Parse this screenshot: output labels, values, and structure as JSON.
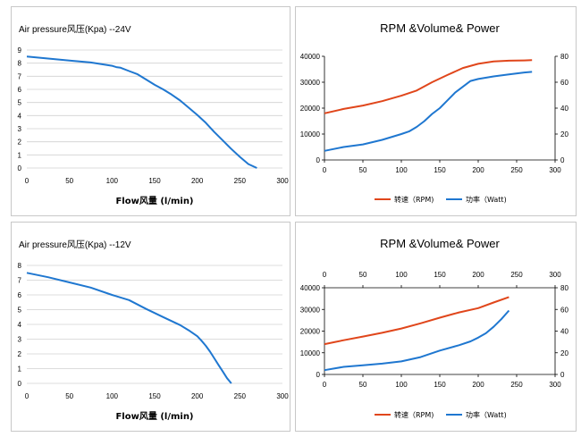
{
  "colors": {
    "blue": "#1f77d0",
    "orange": "#e0461b",
    "grid": "#d0d0d0",
    "border": "#c8c8c8"
  },
  "chart_data": [
    {
      "type": "line",
      "title": "Air pressure风压(Kpa)  --24V",
      "xlabel": "Flow风量  (l/min)",
      "ylabel": "",
      "xlim": [
        0,
        300
      ],
      "ylim": [
        0,
        9
      ],
      "xticks": [
        0,
        50,
        100,
        150,
        200,
        250,
        300
      ],
      "yticks": [
        0,
        1,
        2,
        3,
        4,
        5,
        6,
        7,
        8,
        9
      ],
      "grid": true,
      "series": [
        {
          "x": [
            0,
            25,
            50,
            75,
            100,
            105,
            110,
            120,
            130,
            140,
            150,
            160,
            170,
            180,
            190,
            200,
            210,
            220,
            230,
            240,
            250,
            260,
            270
          ],
          "y": [
            8.5,
            8.35,
            8.2,
            8.05,
            7.8,
            7.7,
            7.65,
            7.4,
            7.15,
            6.75,
            6.35,
            6.0,
            5.6,
            5.15,
            4.6,
            4.05,
            3.45,
            2.75,
            2.1,
            1.45,
            0.85,
            0.3,
            0.0
          ]
        }
      ]
    },
    {
      "type": "line",
      "title": "RPM &Volume& Power",
      "xlim": [
        0,
        300
      ],
      "ylim": [
        0,
        40000
      ],
      "y2lim": [
        0,
        80
      ],
      "xticks": [
        0,
        50,
        100,
        150,
        200,
        250,
        300
      ],
      "yticks": [
        0,
        10000,
        20000,
        30000,
        40000
      ],
      "y2ticks": [
        0,
        20,
        40,
        60,
        80
      ],
      "grid": false,
      "legend_position": "bottom",
      "series": [
        {
          "name": "转速（RPM)",
          "axis": "left",
          "x": [
            0,
            25,
            50,
            75,
            100,
            120,
            140,
            160,
            180,
            200,
            220,
            240,
            260,
            270
          ],
          "y": [
            18000,
            19700,
            21000,
            22700,
            24800,
            26800,
            30000,
            32800,
            35500,
            37100,
            38000,
            38300,
            38400,
            38500
          ]
        },
        {
          "name": "功率（Watt)",
          "axis": "right",
          "x": [
            0,
            25,
            50,
            75,
            100,
            110,
            120,
            130,
            140,
            150,
            160,
            170,
            180,
            190,
            200,
            220,
            240,
            260,
            270
          ],
          "y": [
            7,
            10,
            12,
            15.5,
            20,
            22,
            25.5,
            30,
            35.5,
            40,
            46,
            52,
            56.5,
            61,
            62.5,
            64.5,
            66,
            67.5,
            68
          ]
        }
      ]
    },
    {
      "type": "line",
      "title": "Air pressure风压(Kpa)  --12V",
      "xlabel": "Flow风量  (l/min)",
      "ylabel": "",
      "xlim": [
        0,
        300
      ],
      "ylim": [
        0,
        8
      ],
      "xticks": [
        0,
        50,
        100,
        150,
        200,
        250,
        300
      ],
      "yticks": [
        0,
        1,
        2,
        3,
        4,
        5,
        6,
        7,
        8
      ],
      "grid": true,
      "series": [
        {
          "x": [
            0,
            25,
            50,
            75,
            100,
            120,
            140,
            160,
            180,
            190,
            200,
            205,
            210,
            215,
            220,
            225,
            230,
            235,
            240
          ],
          "y": [
            7.5,
            7.2,
            6.85,
            6.5,
            6.0,
            5.65,
            5.05,
            4.5,
            3.95,
            3.6,
            3.2,
            2.9,
            2.55,
            2.15,
            1.7,
            1.25,
            0.8,
            0.35,
            0.0
          ]
        }
      ]
    },
    {
      "type": "line",
      "title": "RPM &Volume& Power",
      "xlim": [
        0,
        300
      ],
      "ylim": [
        0,
        40000
      ],
      "y2lim": [
        0,
        80
      ],
      "xticks": [
        0,
        50,
        100,
        150,
        200,
        250,
        300
      ],
      "yticks": [
        0,
        10000,
        20000,
        30000,
        40000
      ],
      "y2ticks": [
        0,
        20,
        40,
        60,
        80
      ],
      "top_xaxis": true,
      "grid": false,
      "legend_position": "bottom",
      "series": [
        {
          "name": "转速（RPM)",
          "axis": "left",
          "x": [
            0,
            25,
            50,
            75,
            100,
            125,
            150,
            175,
            200,
            220,
            240
          ],
          "y": [
            14000,
            15800,
            17500,
            19200,
            21200,
            23600,
            26200,
            28600,
            30600,
            33200,
            35700
          ]
        },
        {
          "name": "功率（Watt)",
          "axis": "right",
          "x": [
            0,
            25,
            50,
            75,
            100,
            125,
            150,
            175,
            190,
            200,
            210,
            220,
            230,
            240
          ],
          "y": [
            4,
            7,
            8.5,
            10,
            12,
            16,
            22,
            27,
            30.5,
            34,
            38,
            44,
            51,
            59
          ]
        }
      ]
    }
  ]
}
